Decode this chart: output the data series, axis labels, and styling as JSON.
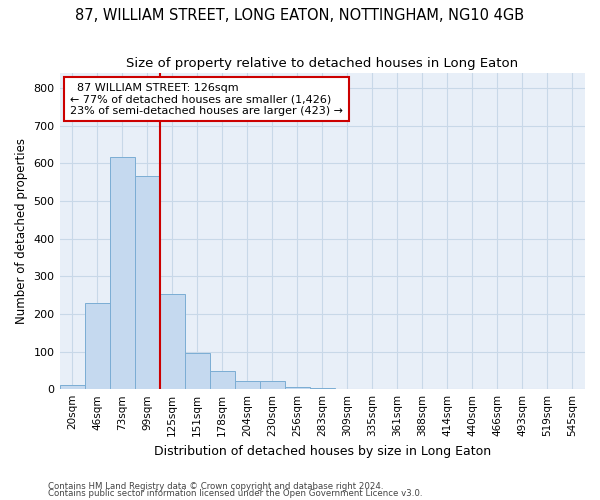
{
  "title": "87, WILLIAM STREET, LONG EATON, NOTTINGHAM, NG10 4GB",
  "subtitle": "Size of property relative to detached houses in Long Eaton",
  "xlabel": "Distribution of detached houses by size in Long Eaton",
  "ylabel": "Number of detached properties",
  "footnote1": "Contains HM Land Registry data © Crown copyright and database right 2024.",
  "footnote2": "Contains public sector information licensed under the Open Government Licence v3.0.",
  "bar_labels": [
    "20sqm",
    "46sqm",
    "73sqm",
    "99sqm",
    "125sqm",
    "151sqm",
    "178sqm",
    "204sqm",
    "230sqm",
    "256sqm",
    "283sqm",
    "309sqm",
    "335sqm",
    "361sqm",
    "388sqm",
    "414sqm",
    "440sqm",
    "466sqm",
    "493sqm",
    "519sqm",
    "545sqm"
  ],
  "bar_values": [
    10,
    228,
    617,
    566,
    253,
    95,
    48,
    22,
    22,
    6,
    2,
    1,
    0,
    0,
    0,
    0,
    0,
    0,
    0,
    0,
    0
  ],
  "bar_color": "#c5d9ef",
  "bar_edge_color": "#7badd4",
  "grid_color": "#c8d8e8",
  "background_color": "#e8eff8",
  "vline_x": 4.0,
  "vline_color": "#cc0000",
  "annotation_text": "  87 WILLIAM STREET: 126sqm\n← 77% of detached houses are smaller (1,426)\n23% of semi-detached houses are larger (423) →",
  "annotation_box_color": "#cc0000",
  "ylim": [
    0,
    840
  ],
  "yticks": [
    0,
    100,
    200,
    300,
    400,
    500,
    600,
    700,
    800
  ],
  "title_fontsize": 10.5,
  "subtitle_fontsize": 9.5,
  "annotation_fontsize": 8,
  "xlabel_fontsize": 9,
  "ylabel_fontsize": 8.5,
  "tick_fontsize": 8,
  "xtick_fontsize": 7.5
}
